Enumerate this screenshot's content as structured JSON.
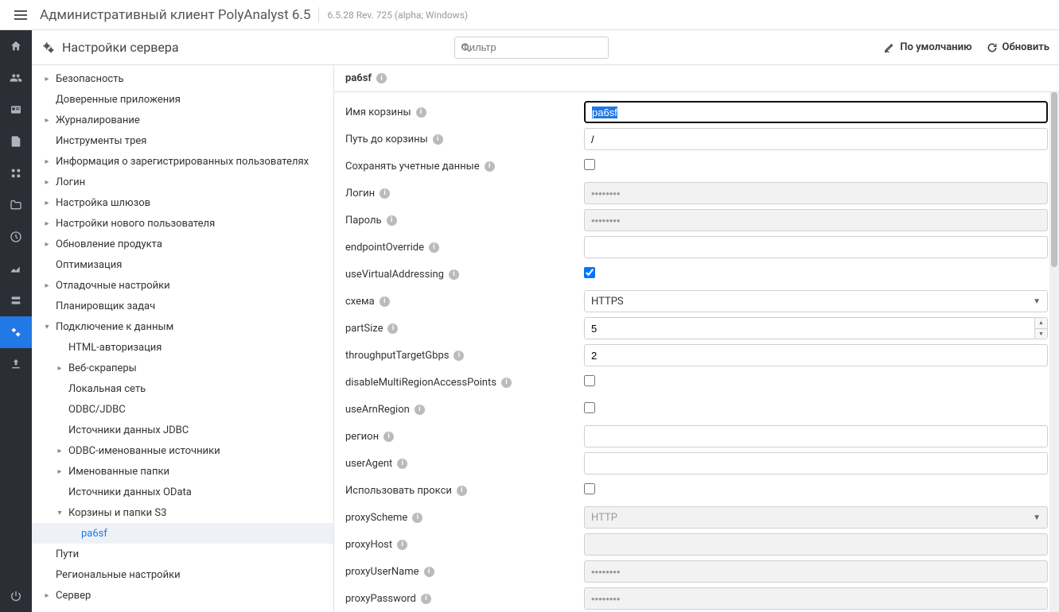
{
  "app_title": "Административный клиент PolyAnalyst 6.5",
  "version": "6.5.28 Rev. 725 (alpha; Windows)",
  "page_title": "Настройки сервера",
  "filter_placeholder": "Фильтр",
  "btn_default": "По умолчанию",
  "btn_refresh": "Обновить",
  "tree": [
    {
      "label": "Безопасность",
      "caret": "collapsed",
      "indent": 0
    },
    {
      "label": "Доверенные приложения",
      "caret": "none",
      "indent": 0
    },
    {
      "label": "Журналирование",
      "caret": "collapsed",
      "indent": 0
    },
    {
      "label": "Инструменты трея",
      "caret": "none",
      "indent": 0
    },
    {
      "label": "Информация о зарегистрированных пользователях",
      "caret": "collapsed",
      "indent": 0
    },
    {
      "label": "Логин",
      "caret": "collapsed",
      "indent": 0
    },
    {
      "label": "Настройка шлюзов",
      "caret": "collapsed",
      "indent": 0
    },
    {
      "label": "Настройки нового пользователя",
      "caret": "collapsed",
      "indent": 0
    },
    {
      "label": "Обновление продукта",
      "caret": "collapsed",
      "indent": 0
    },
    {
      "label": "Оптимизация",
      "caret": "none",
      "indent": 0
    },
    {
      "label": "Отладочные настройки",
      "caret": "collapsed",
      "indent": 0
    },
    {
      "label": "Планировщик задач",
      "caret": "none",
      "indent": 0
    },
    {
      "label": "Подключение к данным",
      "caret": "expanded",
      "indent": 0
    },
    {
      "label": "HTML-авторизация",
      "caret": "none",
      "indent": 1,
      "dotted": true
    },
    {
      "label": "Веб-скраперы",
      "caret": "collapsed",
      "indent": 1,
      "dotted": true
    },
    {
      "label": "Локальная сеть",
      "caret": "none",
      "indent": 1,
      "dotted": true
    },
    {
      "label": "ODBC/JDBC",
      "caret": "none",
      "indent": 1,
      "dotted": true
    },
    {
      "label": "Источники данных JDBC",
      "caret": "none",
      "indent": 1,
      "dotted": true
    },
    {
      "label": "ODBC-именованные источники",
      "caret": "collapsed",
      "indent": 1,
      "dotted": true
    },
    {
      "label": "Именованные папки",
      "caret": "collapsed",
      "indent": 1,
      "dotted": true
    },
    {
      "label": "Источники данных OData",
      "caret": "none",
      "indent": 1,
      "dotted": true
    },
    {
      "label": "Корзины и папки S3",
      "caret": "expanded",
      "indent": 1,
      "dotted": true
    },
    {
      "label": "pa6sf",
      "caret": "none",
      "indent": 2,
      "dotted": true,
      "selected": true
    },
    {
      "label": "Пути",
      "caret": "none",
      "indent": 0
    },
    {
      "label": "Региональные настройки",
      "caret": "none",
      "indent": 0
    },
    {
      "label": "Сервер",
      "caret": "collapsed",
      "indent": 0
    }
  ],
  "form_header": "pa6sf",
  "fields": [
    {
      "label": "Имя корзины",
      "type": "text",
      "value": "pa6sf",
      "highlighted": true
    },
    {
      "label": "Путь до корзины",
      "type": "text",
      "value": "/"
    },
    {
      "label": "Сохранять учетные данные",
      "type": "checkbox",
      "checked": false
    },
    {
      "label": "Логин",
      "type": "password",
      "value": "••••••••",
      "disabled": true
    },
    {
      "label": "Пароль",
      "type": "password",
      "value": "••••••••",
      "disabled": true
    },
    {
      "label": "endpointOverride",
      "type": "text",
      "value": ""
    },
    {
      "label": "useVirtualAddressing",
      "type": "checkbox",
      "checked": true
    },
    {
      "label": "схема",
      "type": "select",
      "value": "HTTPS"
    },
    {
      "label": "partSize",
      "type": "number",
      "value": "5"
    },
    {
      "label": "throughputTargetGbps",
      "type": "text",
      "value": "2"
    },
    {
      "label": "disableMultiRegionAccessPoints",
      "type": "checkbox",
      "checked": false
    },
    {
      "label": "useArnRegion",
      "type": "checkbox",
      "checked": false
    },
    {
      "label": "регион",
      "type": "text",
      "value": ""
    },
    {
      "label": "userAgent",
      "type": "text",
      "value": ""
    },
    {
      "label": "Использовать прокси",
      "type": "checkbox",
      "checked": false
    },
    {
      "label": "proxyScheme",
      "type": "select",
      "value": "HTTP",
      "disabled": true
    },
    {
      "label": "proxyHost",
      "type": "text",
      "value": "",
      "disabled": true
    },
    {
      "label": "proxyUserName",
      "type": "password",
      "value": "••••••••",
      "disabled": true
    },
    {
      "label": "proxyPassword",
      "type": "password",
      "value": "••••••••",
      "disabled": true
    }
  ]
}
